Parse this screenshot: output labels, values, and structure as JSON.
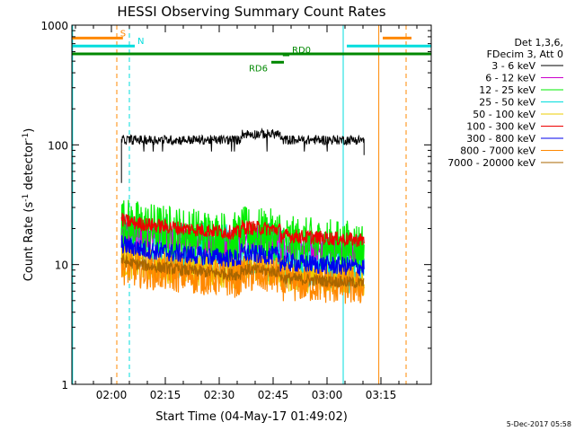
{
  "chart_data": {
    "type": "line",
    "title": "HESSI Observing Summary Count Rates",
    "xlabel": "Start Time (04-May-17 01:49:02)",
    "ylabel_main": "Count Rate (s",
    "ylabel_sup1": "-1",
    "ylabel_mid": " detector",
    "ylabel_sup2": "-1",
    "ylabel_end": ")",
    "y_scale": "log",
    "ylim": [
      1,
      1000
    ],
    "xlim_minutes_after_0149": [
      0,
      100
    ],
    "x_ticks": [
      {
        "label": "02:00",
        "minutes": 11
      },
      {
        "label": "02:15",
        "minutes": 26
      },
      {
        "label": "02:30",
        "minutes": 41
      },
      {
        "label": "02:45",
        "minutes": 56
      },
      {
        "label": "03:00",
        "minutes": 71
      },
      {
        "label": "03:15",
        "minutes": 86
      }
    ],
    "y_ticks": [
      {
        "label": "1",
        "value": 1
      },
      {
        "label": "10",
        "value": 10
      },
      {
        "label": "100",
        "value": 100
      },
      {
        "label": "1000",
        "value": 1000
      }
    ],
    "legend_header": [
      "Det 1,3,6,",
      "FDecim 3, Att 0"
    ],
    "series": [
      {
        "name": "3 - 6 keV",
        "color": "#000000",
        "start_min": 13.8,
        "end_min": 81.3,
        "level_start": 110,
        "level_end": 110,
        "noise": 0.04
      },
      {
        "name": "6 - 12 keV",
        "color": "#cc00cc",
        "start_min": 13.8,
        "end_min": 81.3,
        "level_start": 19,
        "level_end": 13,
        "noise": 0.12
      },
      {
        "name": "12 - 25 keV",
        "color": "#00ee00",
        "start_min": 13.8,
        "end_min": 81.3,
        "level_start": 23,
        "level_end": 14,
        "noise": 0.22
      },
      {
        "name": "25 - 50 keV",
        "color": "#00dddd",
        "start_min": 13.8,
        "end_min": 81.3,
        "level_start": 17,
        "level_end": 10,
        "noise": 0.25
      },
      {
        "name": "50 - 100 keV",
        "color": "#eecc00",
        "start_min": 13.8,
        "end_min": 81.3,
        "level_start": 11,
        "level_end": 7.5,
        "noise": 0.14
      },
      {
        "name": "100 - 300 keV",
        "color": "#ee0000",
        "start_min": 13.8,
        "end_min": 81.3,
        "level_start": 24,
        "level_end": 16,
        "noise": 0.06
      },
      {
        "name": "300 - 800 keV",
        "color": "#0000ee",
        "start_min": 13.8,
        "end_min": 81.3,
        "level_start": 15,
        "level_end": 9.5,
        "noise": 0.08
      },
      {
        "name": "800 - 7000 keV",
        "color": "#ff8800",
        "start_min": 13.8,
        "end_min": 81.3,
        "level_start": 10,
        "level_end": 6.5,
        "noise": 0.16
      },
      {
        "name": "7000 - 20000 keV",
        "color": "#aa6600",
        "start_min": 13.8,
        "end_min": 81.3,
        "level_start": 11,
        "level_end": 7,
        "noise": 0.05
      }
    ],
    "vertical_markers": [
      {
        "minutes": 0.2,
        "color": "#00dddd",
        "dashed": false
      },
      {
        "minutes": 12.5,
        "color": "#ff8800",
        "dashed": true
      },
      {
        "minutes": 16.0,
        "color": "#00dddd",
        "dashed": true
      },
      {
        "minutes": 75.5,
        "color": "#00dddd",
        "dashed": false
      },
      {
        "minutes": 85.4,
        "color": "#ff8800",
        "dashed": false
      },
      {
        "minutes": 93.0,
        "color": "#ff8800",
        "dashed": true
      }
    ],
    "flag_bars": [
      {
        "label": "S",
        "color": "#ff8800",
        "segments": [
          [
            0,
            14.2
          ],
          [
            86.5,
            94.5
          ]
        ],
        "value": 780
      },
      {
        "label": "N",
        "color": "#00dddd",
        "segments": [
          [
            0,
            17.5
          ],
          [
            76.5,
            100
          ]
        ],
        "value": 670
      },
      {
        "label": "",
        "color": "#008800",
        "segments": [
          [
            0,
            100
          ]
        ],
        "value": 575
      },
      {
        "label": "RD0",
        "color": "#008800",
        "segments": [
          [
            58.7,
            60.5
          ]
        ],
        "value": 565
      },
      {
        "label": "RD6",
        "color": "#008800",
        "segments": [
          [
            55.5,
            59.0
          ]
        ],
        "value": 490
      }
    ],
    "footer_date": "5-Dec-2017 05:58"
  }
}
